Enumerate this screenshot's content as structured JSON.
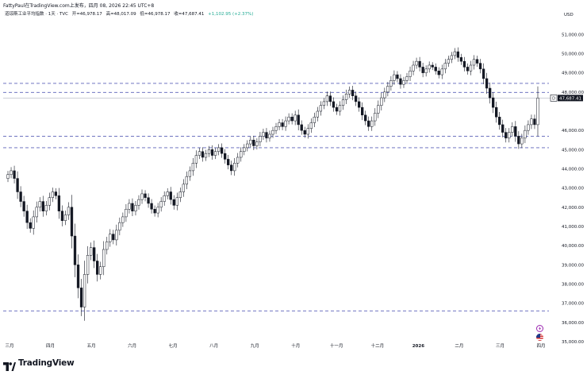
{
  "header": {
    "text": "FattyPaul在TradingView.com上发布，四月 08, 2026 22:45 UTC+8"
  },
  "legend": {
    "symbol": "道琼斯工业平均指数 · 1天 · TVC",
    "open": "开=46,978.17",
    "high": "高=48,017.09",
    "low": "低=46,978.17",
    "close": "收=47,687.41",
    "change": "+1,102.95 (+2.37%)"
  },
  "footer": {
    "brand": "TradingView"
  },
  "icons": [
    "lightning-icon",
    "us-flag-icon"
  ],
  "colors": {
    "candle": "#131722",
    "candle_up_fill": "#ffffff",
    "dashed_line": "#5b61b8",
    "price_line": "#b2b5be",
    "badge_bg": "#131722"
  },
  "chart_data": {
    "type": "candlestick",
    "currency": "USD",
    "ylim": [
      35000,
      51800
    ],
    "y_ticks": [
      "51,000.00",
      "50,000.00",
      "49,000.00",
      "48,000.00",
      "46,000.00",
      "45,000.00",
      "44,000.00",
      "43,000.00",
      "42,000.00",
      "41,000.00",
      "40,000.00",
      "39,000.00",
      "38,000.00",
      "37,000.00",
      "36,000.00",
      "35,000.00"
    ],
    "x_labels": [
      "三月",
      "四月",
      "五月",
      "六月",
      "七月",
      "八月",
      "九月",
      "十月",
      "十一月",
      "十二月",
      "2026",
      "二月",
      "三月",
      "四月"
    ],
    "horizontal_levels": [
      48450,
      47980,
      45700,
      45100,
      36600
    ],
    "last_price": {
      "label": "D",
      "value": "47,687.41",
      "price": 47687.41
    },
    "prices": [
      43700,
      43900,
      43500,
      42800,
      42300,
      41800,
      41200,
      40900,
      41500,
      42000,
      42300,
      41800,
      42100,
      42500,
      42800,
      42600,
      41800,
      41300,
      41600,
      42000,
      40500,
      39000,
      37800,
      36800,
      38500,
      39500,
      39900,
      39200,
      38500,
      38900,
      39800,
      40200,
      40600,
      40300,
      40800,
      41200,
      41500,
      41900,
      42200,
      41800,
      42100,
      42400,
      42700,
      42500,
      42200,
      41900,
      41700,
      42000,
      42300,
      42600,
      42800,
      42400,
      42100,
      42500,
      42800,
      43200,
      43600,
      43900,
      44300,
      44700,
      44900,
      44600,
      44800,
      45000,
      44700,
      44900,
      45100,
      44800,
      44500,
      44200,
      43900,
      44300,
      44600,
      44900,
      45100,
      45300,
      45500,
      45200,
      45400,
      45700,
      45900,
      45600,
      45800,
      46000,
      46200,
      46400,
      46200,
      46500,
      46700,
      46500,
      46800,
      46300,
      46000,
      45800,
      46100,
      46400,
      46700,
      47000,
      47300,
      47500,
      47800,
      47500,
      47200,
      47000,
      47300,
      47600,
      47900,
      48100,
      47800,
      47500,
      47200,
      46800,
      46500,
      46200,
      46500,
      46900,
      47300,
      47700,
      48000,
      48300,
      48600,
      48900,
      48700,
      48400,
      48600,
      48800,
      49100,
      49400,
      49600,
      49300,
      49000,
      49200,
      49400,
      49300,
      49100,
      48900,
      49200,
      49500,
      49700,
      49900,
      50100,
      49800,
      49600,
      49300,
      49100,
      49400,
      49700,
      49500,
      49200,
      48700,
      48200,
      47700,
      47200,
      46700,
      46300,
      45900,
      45600,
      45900,
      46200,
      45700,
      45300,
      45600,
      46000,
      46300,
      46600,
      46300,
      47687
    ]
  }
}
